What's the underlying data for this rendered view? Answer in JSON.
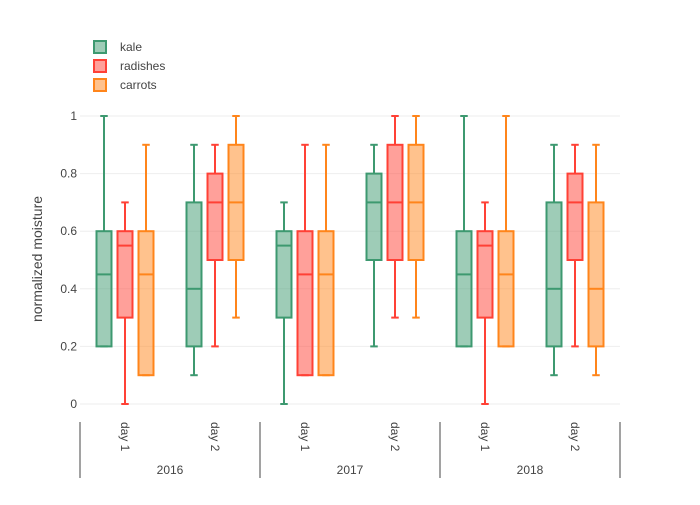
{
  "chart_data": {
    "type": "box",
    "title": "",
    "ylabel": "normalized moisture",
    "ylim": [
      0,
      1
    ],
    "yticks": [
      0,
      0.2,
      0.4,
      0.6,
      0.8,
      1
    ],
    "ytick_labels": [
      "0",
      "0.2",
      "0.4",
      "0.6",
      "0.8",
      "1"
    ],
    "groups": [
      {
        "label": "2016",
        "categories": [
          "day 1",
          "day 2"
        ]
      },
      {
        "label": "2017",
        "categories": [
          "day 1",
          "day 2"
        ]
      },
      {
        "label": "2018",
        "categories": [
          "day 1",
          "day 2"
        ]
      }
    ],
    "legend_position": "top-left",
    "grid": true,
    "series": [
      {
        "name": "kale",
        "line_color": "#3D9970",
        "fill_color": "rgba(61,153,112,0.5)",
        "boxes": [
          {
            "group": "2016",
            "category": "day 1",
            "min": 0.2,
            "q1": 0.2,
            "median": 0.45,
            "q3": 0.6,
            "max": 1.0
          },
          {
            "group": "2016",
            "category": "day 2",
            "min": 0.1,
            "q1": 0.2,
            "median": 0.4,
            "q3": 0.7,
            "max": 0.9
          },
          {
            "group": "2017",
            "category": "day 1",
            "min": 0.0,
            "q1": 0.3,
            "median": 0.55,
            "q3": 0.6,
            "max": 0.7
          },
          {
            "group": "2017",
            "category": "day 2",
            "min": 0.2,
            "q1": 0.5,
            "median": 0.7,
            "q3": 0.8,
            "max": 0.9
          },
          {
            "group": "2018",
            "category": "day 1",
            "min": 0.2,
            "q1": 0.2,
            "median": 0.45,
            "q3": 0.6,
            "max": 1.0
          },
          {
            "group": "2018",
            "category": "day 2",
            "min": 0.1,
            "q1": 0.2,
            "median": 0.4,
            "q3": 0.7,
            "max": 0.9
          }
        ]
      },
      {
        "name": "radishes",
        "line_color": "#FF4136",
        "fill_color": "rgba(255,65,54,0.5)",
        "boxes": [
          {
            "group": "2016",
            "category": "day 1",
            "min": 0.0,
            "q1": 0.3,
            "median": 0.55,
            "q3": 0.6,
            "max": 0.7
          },
          {
            "group": "2016",
            "category": "day 2",
            "min": 0.2,
            "q1": 0.5,
            "median": 0.7,
            "q3": 0.8,
            "max": 0.9
          },
          {
            "group": "2017",
            "category": "day 1",
            "min": 0.1,
            "q1": 0.1,
            "median": 0.45,
            "q3": 0.6,
            "max": 0.9
          },
          {
            "group": "2017",
            "category": "day 2",
            "min": 0.3,
            "q1": 0.5,
            "median": 0.7,
            "q3": 0.9,
            "max": 1.0
          },
          {
            "group": "2018",
            "category": "day 1",
            "min": 0.0,
            "q1": 0.3,
            "median": 0.55,
            "q3": 0.6,
            "max": 0.7
          },
          {
            "group": "2018",
            "category": "day 2",
            "min": 0.2,
            "q1": 0.5,
            "median": 0.7,
            "q3": 0.8,
            "max": 0.9
          }
        ]
      },
      {
        "name": "carrots",
        "line_color": "#FF851B",
        "fill_color": "rgba(255,133,27,0.5)",
        "boxes": [
          {
            "group": "2016",
            "category": "day 1",
            "min": 0.1,
            "q1": 0.1,
            "median": 0.45,
            "q3": 0.6,
            "max": 0.9
          },
          {
            "group": "2016",
            "category": "day 2",
            "min": 0.3,
            "q1": 0.5,
            "median": 0.7,
            "q3": 0.9,
            "max": 1.0
          },
          {
            "group": "2017",
            "category": "day 1",
            "min": 0.1,
            "q1": 0.1,
            "median": 0.45,
            "q3": 0.6,
            "max": 0.9
          },
          {
            "group": "2017",
            "category": "day 2",
            "min": 0.3,
            "q1": 0.5,
            "median": 0.7,
            "q3": 0.9,
            "max": 1.0
          },
          {
            "group": "2018",
            "category": "day 1",
            "min": 0.2,
            "q1": 0.2,
            "median": 0.45,
            "q3": 0.6,
            "max": 1.0
          },
          {
            "group": "2018",
            "category": "day 2",
            "min": 0.1,
            "q1": 0.2,
            "median": 0.4,
            "q3": 0.7,
            "max": 0.9
          }
        ]
      }
    ]
  }
}
